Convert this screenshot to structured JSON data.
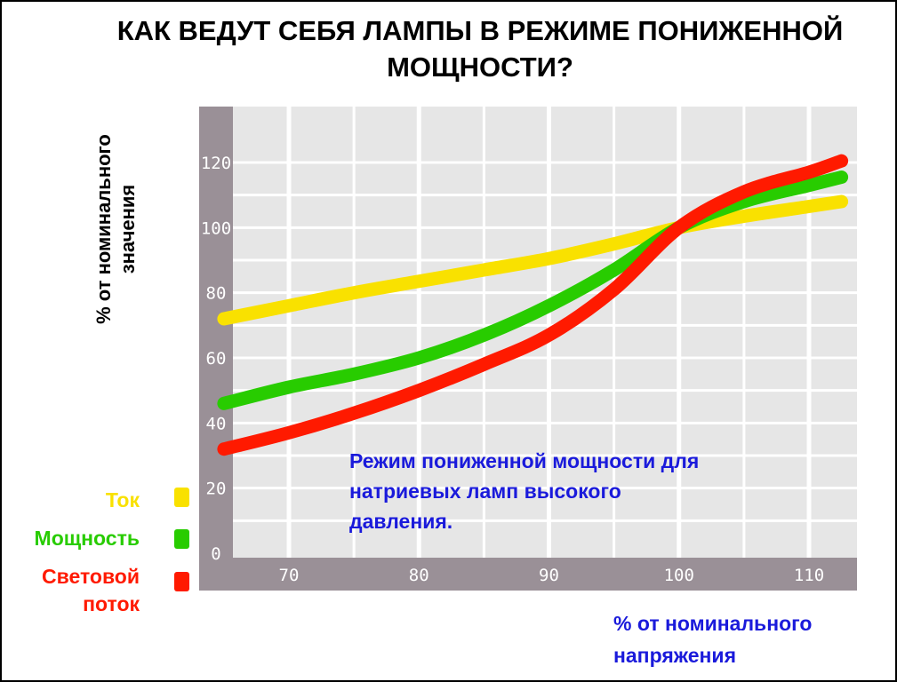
{
  "title": "КАК ВЕДУТ СЕБЯ ЛАМПЫ В РЕЖИМЕ ПОНИЖЕННОЙ МОЩНОСТИ?",
  "ylabel_line1": "% от номинального",
  "ylabel_line2": "значения",
  "xlabel_line1": "% от номинального",
  "xlabel_line2": "напряжения",
  "annotation_lines": [
    "Режим пониженной мощности для",
    "натриевых ламп высокого",
    "давления."
  ],
  "legend": [
    {
      "label_lines": [
        "Ток"
      ],
      "color": "#f9e100"
    },
    {
      "label_lines": [
        "Мощность"
      ],
      "color": "#28cc00"
    },
    {
      "label_lines": [
        "Световой",
        "поток"
      ],
      "color": "#ff1a00"
    }
  ],
  "chart_data": {
    "type": "line",
    "title": "КАК ВЕДУТ СЕБЯ ЛАМПЫ В РЕЖИМЕ ПОНИЖЕННОЙ МОЩНОСТИ?",
    "xlabel": "% от номинального напряжения",
    "ylabel": "% от номинального значения",
    "xlim": [
      62,
      113
    ],
    "ylim": [
      0,
      128
    ],
    "x_ticks": [
      70,
      80,
      90,
      100,
      110
    ],
    "y_ticks": [
      0,
      20,
      40,
      60,
      80,
      100,
      120
    ],
    "grid": true,
    "legend_position": "bottom-left",
    "series": [
      {
        "name": "Ток",
        "color": "#f9e100",
        "x": [
          65,
          70,
          75,
          80,
          85,
          90,
          95,
          100,
          105,
          110,
          112.5
        ],
        "y": [
          72,
          76,
          80,
          83.5,
          87,
          90.5,
          95,
          100,
          103.5,
          106.5,
          108
        ]
      },
      {
        "name": "Мощность",
        "color": "#28cc00",
        "x": [
          65,
          70,
          75,
          80,
          85,
          90,
          95,
          100,
          105,
          110,
          112.5
        ],
        "y": [
          46,
          51,
          55,
          60,
          67,
          76,
          87,
          100,
          108,
          113,
          115.5
        ]
      },
      {
        "name": "Световой поток",
        "color": "#ff1a00",
        "x": [
          65,
          70,
          75,
          80,
          85,
          90,
          95,
          100,
          105,
          110,
          112.5
        ],
        "y": [
          32,
          37,
          43,
          50,
          58,
          67,
          81,
          100,
          111,
          117,
          120.5
        ]
      }
    ]
  }
}
